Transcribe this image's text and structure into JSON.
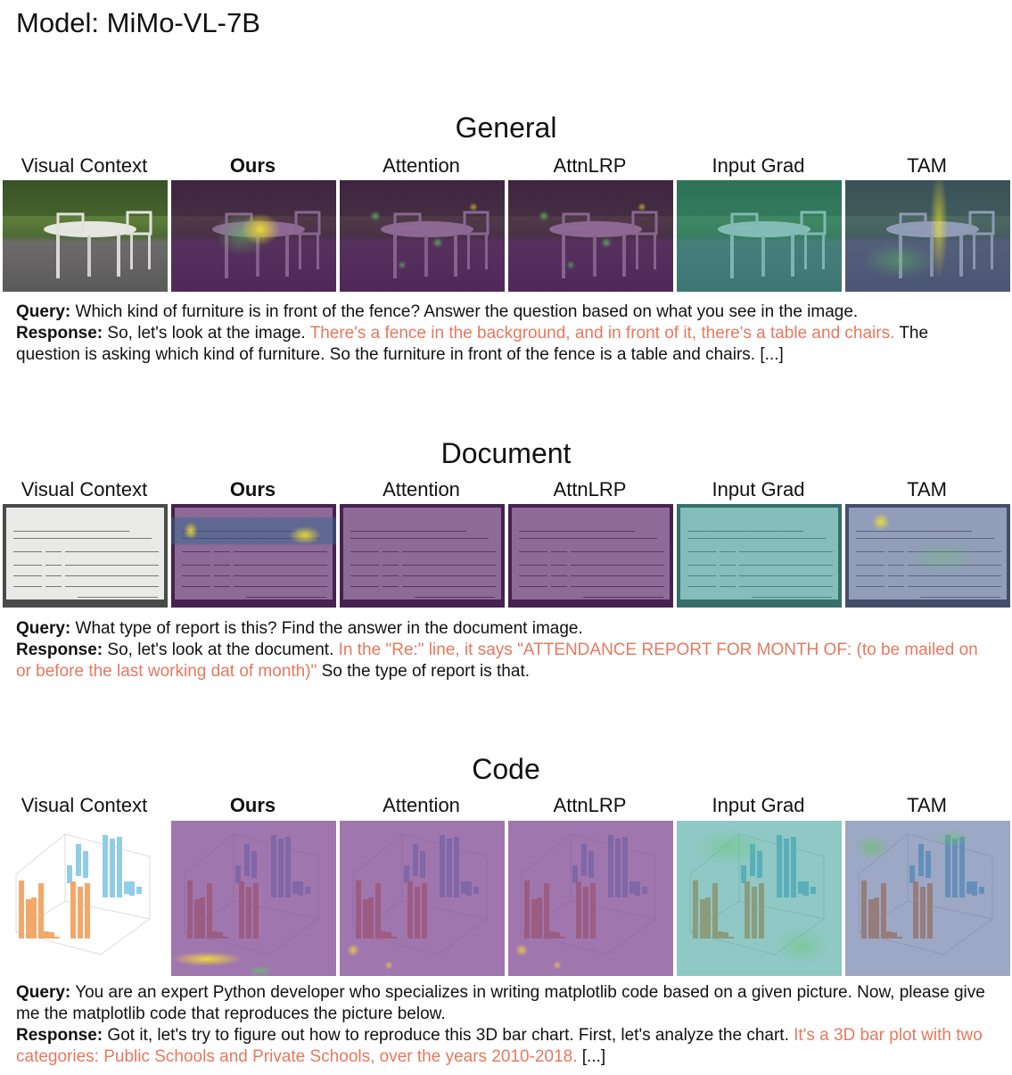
{
  "title": "Model: MiMo-VL-7B",
  "sections": [
    {
      "name": "General",
      "columns": [
        "Visual Context",
        "Ours",
        "Attention",
        "AttnLRP",
        "Input Grad",
        "TAM"
      ],
      "query_label": "Query:",
      "query": "Which kind of furniture is in front of the fence? Answer the question based on what you see in the image.",
      "response_label": "Response:",
      "response_pre": "So, let's look at the image.",
      "response_highlight": "There's a fence in the background, and in front of it, there's a table and chairs.",
      "response_post": "The question is asking which kind of furniture. So the furniture in front of the fence is a table and chairs. [...]"
    },
    {
      "name": "Document",
      "columns": [
        "Visual Context",
        "Ours",
        "Attention",
        "AttnLRP",
        "Input Grad",
        "TAM"
      ],
      "query_label": "Query:",
      "query": "What type of report is this? Find the answer in the document image.",
      "response_label": "Response:",
      "response_pre": "So, let's look at the document.",
      "response_highlight": "In the \"Re:\" line, it says \"ATTENDANCE REPORT FOR MONTH OF: (to be mailed on or before the last working dat of month)\"",
      "response_post": "So the type of report is that."
    },
    {
      "name": "Code",
      "columns": [
        "Visual Context",
        "Ours",
        "Attention",
        "AttnLRP",
        "Input Grad",
        "TAM"
      ],
      "query_label": "Query:",
      "query": "You are an expert Python developer who specializes in writing matplotlib code based on a given picture. Now, please give me the matplotlib code that reproduces the picture below.",
      "response_label": "Response:",
      "response_pre": "Got it, let's try to figure out how to reproduce this 3D bar chart. First, let's analyze the chart.",
      "response_highlight": "It's a 3D bar plot with two categories: Public Schools and Private Schools, over the years 2010-2018.",
      "response_post": "[...]"
    }
  ],
  "colors": {
    "highlight": "#e7785e"
  }
}
